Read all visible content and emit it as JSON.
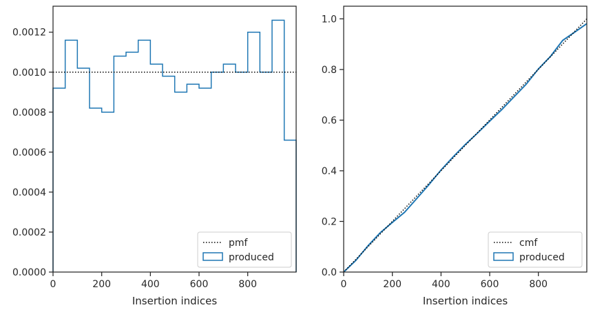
{
  "chart_data": [
    {
      "type": "step",
      "xlabel": "Insertion indices",
      "ylabel": "",
      "xlim": [
        0,
        999
      ],
      "ylim": [
        0,
        0.00133
      ],
      "xticks": [
        0,
        200,
        400,
        600,
        800
      ],
      "yticks": [
        0.0,
        0.0002,
        0.0004,
        0.0006,
        0.0008,
        0.001,
        0.0012
      ],
      "ytick_labels": [
        "0.0000",
        "0.0002",
        "0.0004",
        "0.0006",
        "0.0008",
        "0.0010",
        "0.0012"
      ],
      "legend_position": "lower-right",
      "series": [
        {
          "name": "pmf",
          "style": "dotted",
          "color": "#000000",
          "x": [
            0,
            999
          ],
          "values": [
            0.001,
            0.001
          ]
        },
        {
          "name": "produced",
          "style": "step-histogram",
          "color": "#1f77b4",
          "bin_edges": [
            0,
            50,
            100,
            150,
            200,
            250,
            300,
            350,
            400,
            450,
            500,
            550,
            600,
            650,
            700,
            750,
            800,
            850,
            900,
            950,
            999
          ],
          "values": [
            0.00092,
            0.00116,
            0.00102,
            0.00082,
            0.0008,
            0.00108,
            0.0011,
            0.00116,
            0.00104,
            0.00098,
            0.0009,
            0.00094,
            0.00092,
            0.001,
            0.00104,
            0.001,
            0.0012,
            0.001,
            0.00126,
            0.00066
          ]
        }
      ]
    },
    {
      "type": "line",
      "xlabel": "Insertion indices",
      "ylabel": "",
      "xlim": [
        0,
        999
      ],
      "ylim": [
        0,
        1.05
      ],
      "xticks": [
        0,
        200,
        400,
        600,
        800
      ],
      "yticks": [
        0.0,
        0.2,
        0.4,
        0.6,
        0.8,
        1.0
      ],
      "ytick_labels": [
        "0.0",
        "0.2",
        "0.4",
        "0.6",
        "0.8",
        "1.0"
      ],
      "legend_position": "lower-right",
      "series": [
        {
          "name": "cmf",
          "style": "dotted",
          "color": "#000000",
          "x": [
            0,
            999
          ],
          "values": [
            0,
            1.0
          ]
        },
        {
          "name": "produced",
          "style": "solid",
          "color": "#1f77b4",
          "x": [
            0,
            50,
            100,
            150,
            200,
            250,
            300,
            350,
            400,
            450,
            500,
            550,
            600,
            650,
            700,
            750,
            800,
            850,
            900,
            950,
            999
          ],
          "values": [
            0,
            0.046,
            0.104,
            0.155,
            0.196,
            0.236,
            0.29,
            0.345,
            0.403,
            0.455,
            0.504,
            0.549,
            0.596,
            0.642,
            0.692,
            0.742,
            0.802,
            0.852,
            0.915,
            0.948,
            0.981
          ]
        }
      ]
    }
  ]
}
